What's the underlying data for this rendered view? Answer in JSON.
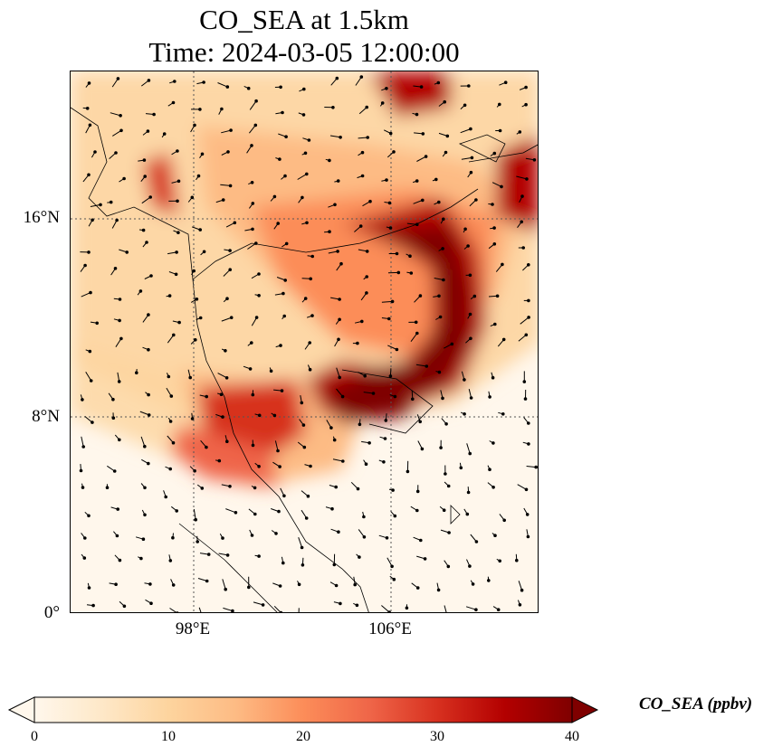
{
  "title": {
    "line1": "CO_SEA at 1.5km",
    "line2": "Time: 2024-03-05 12:00:00"
  },
  "map": {
    "lon_ticks": [
      "98°E",
      "106°E"
    ],
    "lat_ticks": [
      "16°N",
      "8°N",
      "0°"
    ],
    "extent": {
      "lon_min": 93,
      "lon_max": 112,
      "lat_min": 0,
      "lat_max": 22
    },
    "gridlines": "dotted",
    "field_units": "ppbv",
    "wind_vectors": true
  },
  "colorbar": {
    "label": "CO_SEA (ppbv)",
    "ticks": [
      "0",
      "10",
      "20",
      "30",
      "40"
    ],
    "colormap": "OrRd",
    "colors": [
      "#fff7ec",
      "#fee8c8",
      "#fdd49e",
      "#fdbb84",
      "#fc8d59",
      "#ef6548",
      "#d7301f",
      "#b30000",
      "#7f0000"
    ],
    "extend": "both"
  }
}
